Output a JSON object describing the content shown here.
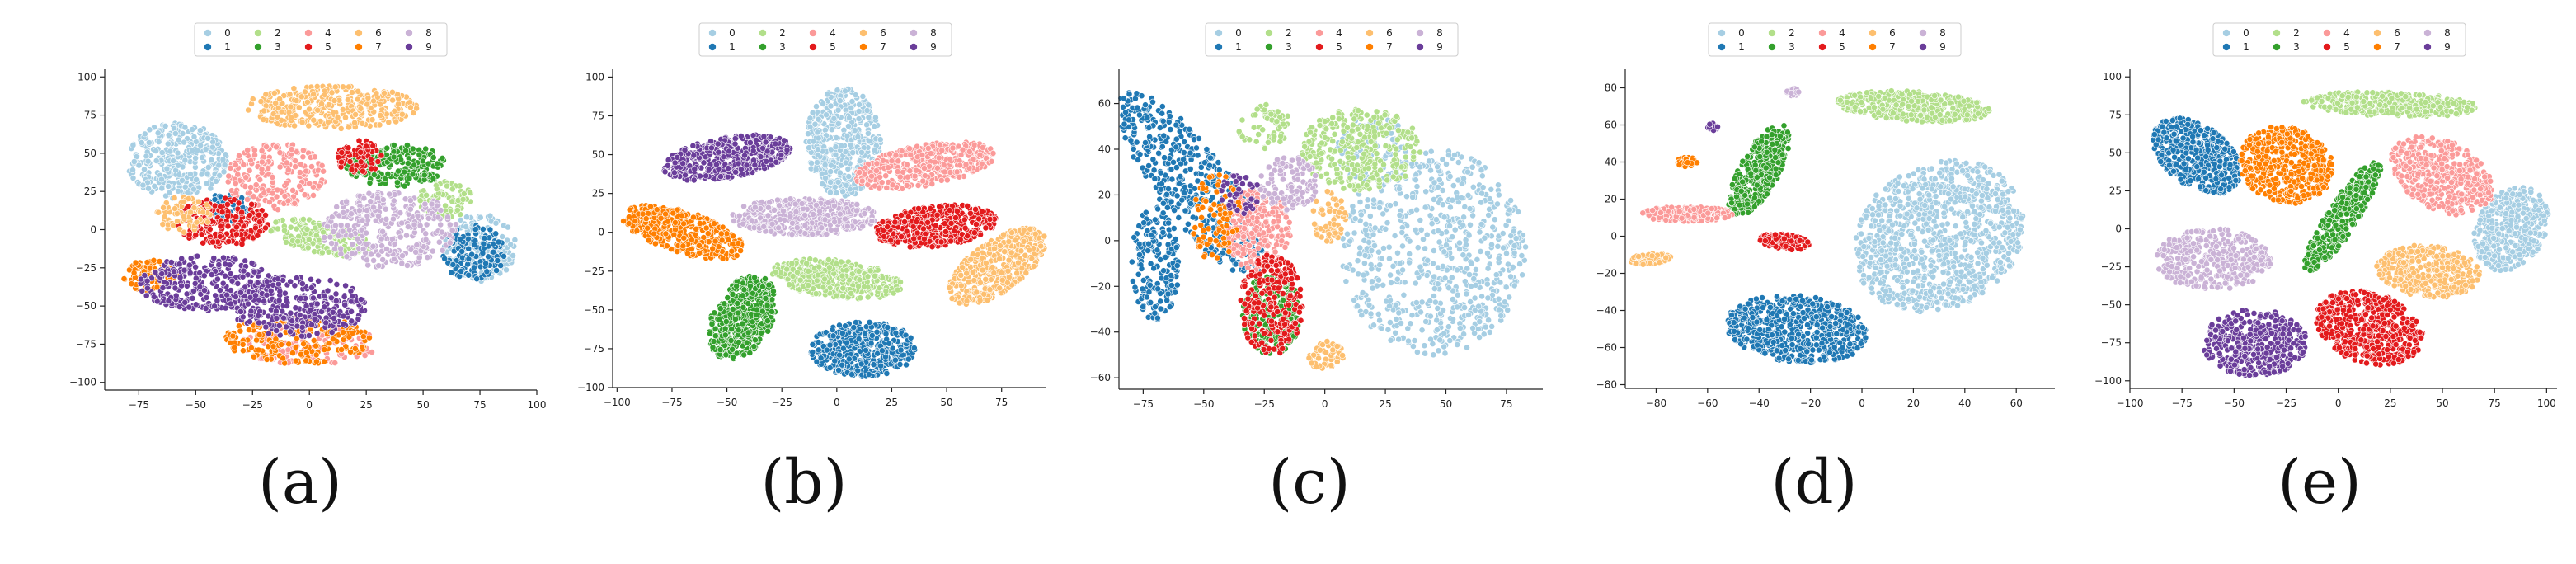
{
  "colors": {
    "0": "#a6cee3",
    "1": "#1f78b4",
    "2": "#b2df8a",
    "3": "#33a02c",
    "4": "#fb9a99",
    "5": "#e31a1c",
    "6": "#fdbf6f",
    "7": "#ff7f00",
    "8": "#cab2d6",
    "9": "#6a3d9a"
  },
  "legend_labels": [
    "0",
    "1",
    "2",
    "3",
    "4",
    "5",
    "6",
    "7",
    "8",
    "9"
  ],
  "chart_data": [
    {
      "type": "scatter",
      "caption": "(a)",
      "xlim": [
        -90,
        100
      ],
      "ylim": [
        -105,
        105
      ],
      "xticks": [
        -75,
        -50,
        -25,
        0,
        25,
        50,
        75,
        100
      ],
      "yticks": [
        -100,
        -75,
        -50,
        -25,
        0,
        25,
        50,
        75,
        100
      ],
      "clusters": [
        {
          "label": "0",
          "cx": -58,
          "cy": 45,
          "rx": 22,
          "ry": 25,
          "angle": 0,
          "n": 330
        },
        {
          "label": "0",
          "cx": 75,
          "cy": -12,
          "rx": 16,
          "ry": 22,
          "angle": 0,
          "n": 160
        },
        {
          "label": "1",
          "cx": 72,
          "cy": -15,
          "rx": 14,
          "ry": 18,
          "angle": 0,
          "n": 140
        },
        {
          "label": "1",
          "cx": -35,
          "cy": 15,
          "rx": 10,
          "ry": 10,
          "angle": 0,
          "n": 60
        },
        {
          "label": "2",
          "cx": 5,
          "cy": -5,
          "rx": 24,
          "ry": 10,
          "angle": -20,
          "n": 160
        },
        {
          "label": "2",
          "cx": 60,
          "cy": 20,
          "rx": 12,
          "ry": 12,
          "angle": 0,
          "n": 80
        },
        {
          "label": "3",
          "cx": 38,
          "cy": 42,
          "rx": 22,
          "ry": 14,
          "angle": 0,
          "n": 220
        },
        {
          "label": "4",
          "cx": -15,
          "cy": 35,
          "rx": 22,
          "ry": 22,
          "angle": 0,
          "n": 220
        },
        {
          "label": "4",
          "cx": 0,
          "cy": -75,
          "rx": 30,
          "ry": 14,
          "angle": 0,
          "n": 140
        },
        {
          "label": "5",
          "cx": -38,
          "cy": 5,
          "rx": 20,
          "ry": 16,
          "angle": 0,
          "n": 230
        },
        {
          "label": "5",
          "cx": 22,
          "cy": 48,
          "rx": 10,
          "ry": 12,
          "angle": 0,
          "n": 70
        },
        {
          "label": "6",
          "cx": 10,
          "cy": 80,
          "rx": 38,
          "ry": 14,
          "angle": 0,
          "n": 320
        },
        {
          "label": "6",
          "cx": -55,
          "cy": 10,
          "rx": 12,
          "ry": 12,
          "angle": 0,
          "n": 70
        },
        {
          "label": "7",
          "cx": -5,
          "cy": -72,
          "rx": 32,
          "ry": 16,
          "angle": 0,
          "n": 210
        },
        {
          "label": "7",
          "cx": -70,
          "cy": -30,
          "rx": 12,
          "ry": 10,
          "angle": 0,
          "n": 80
        },
        {
          "label": "8",
          "cx": 35,
          "cy": 0,
          "rx": 30,
          "ry": 25,
          "angle": 0,
          "n": 340
        },
        {
          "label": "9",
          "cx": -45,
          "cy": -35,
          "rx": 30,
          "ry": 18,
          "angle": 0,
          "n": 280
        },
        {
          "label": "9",
          "cx": -5,
          "cy": -50,
          "rx": 30,
          "ry": 20,
          "angle": 0,
          "n": 300
        }
      ]
    },
    {
      "type": "scatter",
      "caption": "(b)",
      "xlim": [
        -102,
        95
      ],
      "ylim": [
        -100,
        105
      ],
      "xticks": [
        -100,
        -75,
        -50,
        -25,
        0,
        25,
        50,
        75
      ],
      "yticks": [
        -100,
        -75,
        -50,
        -25,
        0,
        25,
        50,
        75,
        100
      ],
      "clusters": [
        {
          "label": "0",
          "cx": 3,
          "cy": 58,
          "rx": 17,
          "ry": 35,
          "angle": 0,
          "n": 450
        },
        {
          "label": "1",
          "cx": 12,
          "cy": -75,
          "rx": 24,
          "ry": 18,
          "angle": 0,
          "n": 450
        },
        {
          "label": "2",
          "cx": 0,
          "cy": -30,
          "rx": 30,
          "ry": 12,
          "angle": -10,
          "n": 400
        },
        {
          "label": "3",
          "cx": -43,
          "cy": -55,
          "rx": 14,
          "ry": 28,
          "angle": -15,
          "n": 450
        },
        {
          "label": "4",
          "cx": 40,
          "cy": 43,
          "rx": 33,
          "ry": 13,
          "angle": 15,
          "n": 420
        },
        {
          "label": "5",
          "cx": 45,
          "cy": 4,
          "rx": 28,
          "ry": 13,
          "angle": 10,
          "n": 450
        },
        {
          "label": "6",
          "cx": 73,
          "cy": -22,
          "rx": 30,
          "ry": 14,
          "angle": 50,
          "n": 450
        },
        {
          "label": "7",
          "cx": -70,
          "cy": 0,
          "rx": 30,
          "ry": 13,
          "angle": -25,
          "n": 450
        },
        {
          "label": "8",
          "cx": -15,
          "cy": 10,
          "rx": 33,
          "ry": 12,
          "angle": 0,
          "n": 450
        },
        {
          "label": "9",
          "cx": -50,
          "cy": 48,
          "rx": 30,
          "ry": 13,
          "angle": 15,
          "n": 450
        }
      ]
    },
    {
      "type": "scatter",
      "caption": "(c)",
      "xlim": [
        -85,
        90
      ],
      "ylim": [
        -65,
        75
      ],
      "xticks": [
        -75,
        -50,
        -25,
        0,
        25,
        50,
        75
      ],
      "yticks": [
        -60,
        -40,
        -20,
        0,
        20,
        40,
        60
      ],
      "clusters": [
        {
          "label": "0",
          "cx": 45,
          "cy": -5,
          "rx": 38,
          "ry": 45,
          "angle": 0,
          "n": 700
        },
        {
          "label": "0",
          "cx": 20,
          "cy": 40,
          "rx": 15,
          "ry": 15,
          "angle": 0,
          "n": 80
        },
        {
          "label": "1",
          "cx": -55,
          "cy": 25,
          "rx": 15,
          "ry": 48,
          "angle": 35,
          "n": 450
        },
        {
          "label": "1",
          "cx": -70,
          "cy": -10,
          "rx": 10,
          "ry": 25,
          "angle": 0,
          "n": 180
        },
        {
          "label": "2",
          "cx": 15,
          "cy": 40,
          "rx": 25,
          "ry": 18,
          "angle": 0,
          "n": 320
        },
        {
          "label": "2",
          "cx": -25,
          "cy": 50,
          "rx": 12,
          "ry": 10,
          "angle": 0,
          "n": 60
        },
        {
          "label": "3",
          "cx": -22,
          "cy": -32,
          "rx": 12,
          "ry": 18,
          "angle": 0,
          "n": 220
        },
        {
          "label": "4",
          "cx": -28,
          "cy": 5,
          "rx": 14,
          "ry": 18,
          "angle": 0,
          "n": 260
        },
        {
          "label": "5",
          "cx": -22,
          "cy": -28,
          "rx": 13,
          "ry": 22,
          "angle": 0,
          "n": 240
        },
        {
          "label": "6",
          "cx": 2,
          "cy": 10,
          "rx": 7,
          "ry": 12,
          "angle": 0,
          "n": 60
        },
        {
          "label": "6",
          "cx": 0,
          "cy": -50,
          "rx": 8,
          "ry": 6,
          "angle": 0,
          "n": 50
        },
        {
          "label": "7",
          "cx": -45,
          "cy": 10,
          "rx": 10,
          "ry": 20,
          "angle": 0,
          "n": 80
        },
        {
          "label": "8",
          "cx": -15,
          "cy": 25,
          "rx": 12,
          "ry": 12,
          "angle": 0,
          "n": 110
        },
        {
          "label": "9",
          "cx": -35,
          "cy": 20,
          "rx": 8,
          "ry": 10,
          "angle": 0,
          "n": 40
        }
      ]
    },
    {
      "type": "scatter",
      "caption": "(d)",
      "xlim": [
        -92,
        75
      ],
      "ylim": [
        -82,
        90
      ],
      "xticks": [
        -80,
        -60,
        -40,
        -20,
        0,
        20,
        40,
        60
      ],
      "yticks": [
        -80,
        -60,
        -40,
        -20,
        0,
        20,
        40,
        60,
        80
      ],
      "clusters": [
        {
          "label": "0",
          "cx": 30,
          "cy": 0,
          "rx": 32,
          "ry": 42,
          "angle": -20,
          "n": 1000
        },
        {
          "label": "1",
          "cx": -25,
          "cy": -50,
          "rx": 28,
          "ry": 18,
          "angle": -10,
          "n": 650
        },
        {
          "label": "2",
          "cx": 20,
          "cy": 70,
          "rx": 30,
          "ry": 8,
          "angle": -5,
          "n": 420
        },
        {
          "label": "3",
          "cx": -40,
          "cy": 35,
          "rx": 8,
          "ry": 27,
          "angle": -20,
          "n": 380
        },
        {
          "label": "4",
          "cx": -68,
          "cy": 12,
          "rx": 18,
          "ry": 4,
          "angle": 0,
          "n": 200
        },
        {
          "label": "5",
          "cx": -30,
          "cy": -3,
          "rx": 10,
          "ry": 4,
          "angle": -10,
          "n": 130
        },
        {
          "label": "6",
          "cx": -82,
          "cy": -12,
          "rx": 8,
          "ry": 3,
          "angle": 10,
          "n": 80
        },
        {
          "label": "7",
          "cx": -68,
          "cy": 40,
          "rx": 4,
          "ry": 2.5,
          "angle": 0,
          "n": 50
        },
        {
          "label": "8",
          "cx": -27,
          "cy": 78,
          "rx": 2.5,
          "ry": 3,
          "angle": 0,
          "n": 20
        },
        {
          "label": "9",
          "cx": -58,
          "cy": 59,
          "rx": 2,
          "ry": 2,
          "angle": 0,
          "n": 15
        }
      ]
    },
    {
      "type": "scatter",
      "caption": "(e)",
      "xlim": [
        -100,
        105
      ],
      "ylim": [
        -105,
        105
      ],
      "xticks": [
        -100,
        -75,
        -50,
        -25,
        0,
        25,
        50,
        75,
        100
      ],
      "yticks": [
        -100,
        -75,
        -50,
        -25,
        0,
        25,
        50,
        75,
        100
      ],
      "clusters": [
        {
          "label": "0",
          "cx": 83,
          "cy": 0,
          "rx": 17,
          "ry": 28,
          "angle": -15,
          "n": 420
        },
        {
          "label": "1",
          "cx": -68,
          "cy": 48,
          "rx": 17,
          "ry": 28,
          "angle": 35,
          "n": 450
        },
        {
          "label": "2",
          "cx": 25,
          "cy": 82,
          "rx": 42,
          "ry": 8,
          "angle": -3,
          "n": 380
        },
        {
          "label": "3",
          "cx": 2,
          "cy": 8,
          "rx": 8,
          "ry": 40,
          "angle": -25,
          "n": 350
        },
        {
          "label": "4",
          "cx": 50,
          "cy": 35,
          "rx": 20,
          "ry": 30,
          "angle": 40,
          "n": 450
        },
        {
          "label": "5",
          "cx": 15,
          "cy": -65,
          "rx": 22,
          "ry": 28,
          "angle": 50,
          "n": 520
        },
        {
          "label": "6",
          "cx": 43,
          "cy": -28,
          "rx": 25,
          "ry": 17,
          "angle": -10,
          "n": 400
        },
        {
          "label": "7",
          "cx": -25,
          "cy": 42,
          "rx": 22,
          "ry": 26,
          "angle": 20,
          "n": 450
        },
        {
          "label": "8",
          "cx": -60,
          "cy": -20,
          "rx": 28,
          "ry": 20,
          "angle": 0,
          "n": 380
        },
        {
          "label": "9",
          "cx": -40,
          "cy": -75,
          "rx": 25,
          "ry": 22,
          "angle": 0,
          "n": 420
        }
      ]
    }
  ]
}
